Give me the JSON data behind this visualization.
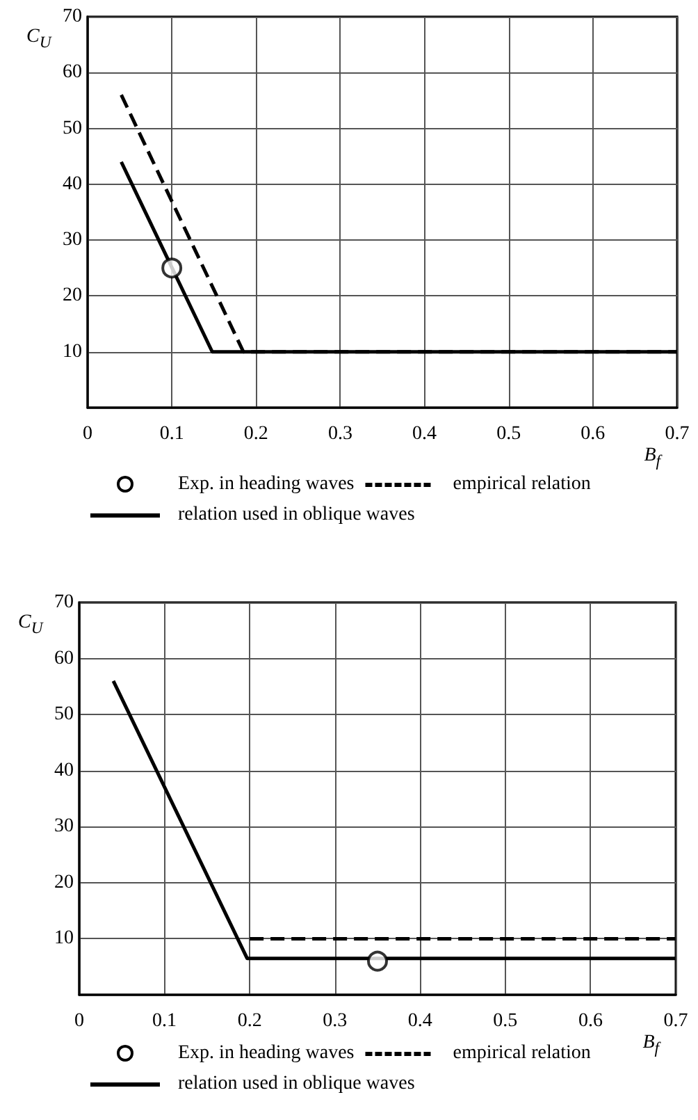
{
  "chart_data": [
    {
      "type": "line",
      "xlabel": "B$_{f}$",
      "ylabel": "C$_{U}$",
      "xlim": [
        0,
        0.7
      ],
      "xticks": [
        0,
        0.1,
        0.2,
        0.3,
        0.4,
        0.5,
        0.6,
        0.7
      ],
      "ylim": [
        0,
        70
      ],
      "yticks": [
        {
          "value": 0,
          "label": null
        },
        10,
        20,
        30,
        40,
        50,
        60,
        70
      ],
      "grid": true,
      "legend": "bottom",
      "series": [
        {
          "name": "Exp. in heading waves",
          "type": "scatter",
          "marker": "circle",
          "color": "#000000",
          "x": [
            0.1
          ],
          "values": [
            25
          ]
        },
        {
          "name": "empirical relation",
          "type": "line",
          "marker": "none",
          "line_style": "dashed",
          "color": "#000000",
          "x": [
            0.04,
            0.185,
            0.7
          ],
          "values": [
            56,
            10,
            10
          ]
        },
        {
          "name": "relation used in oblique waves",
          "type": "line",
          "marker": "none",
          "line_style": "solid",
          "color": "#000000",
          "x": [
            0.04,
            0.148,
            0.7
          ],
          "values": [
            44,
            10,
            10
          ]
        }
      ]
    },
    {
      "type": "line",
      "xlabel": "B$_{f}$",
      "ylabel": "C$_{U}$",
      "xlim": [
        0,
        0.7
      ],
      "xticks": [
        0,
        0.1,
        0.2,
        0.3,
        0.4,
        0.5,
        0.6,
        0.7
      ],
      "ylim": [
        0,
        70
      ],
      "yticks": [
        {
          "value": 0,
          "label": null
        },
        10,
        20,
        30,
        40,
        50,
        60,
        70
      ],
      "grid": true,
      "legend": "bottom",
      "series": [
        {
          "name": "Exp. in heading waves",
          "type": "scatter",
          "marker": "circle",
          "color": "#000000",
          "x": [
            0.35
          ],
          "values": [
            6
          ]
        },
        {
          "name": "empirical relation",
          "type": "line",
          "marker": "none",
          "line_style": "dashed",
          "color": "#000000",
          "x": [
            0.2,
            0.7
          ],
          "values": [
            10,
            10
          ]
        },
        {
          "name": "relation used in oblique waves",
          "type": "line",
          "marker": "none",
          "line_style": "solid",
          "color": "#000000",
          "x": [
            0.04,
            0.197,
            0.7
          ],
          "values": [
            56,
            6.5,
            6.5
          ]
        }
      ]
    }
  ]
}
